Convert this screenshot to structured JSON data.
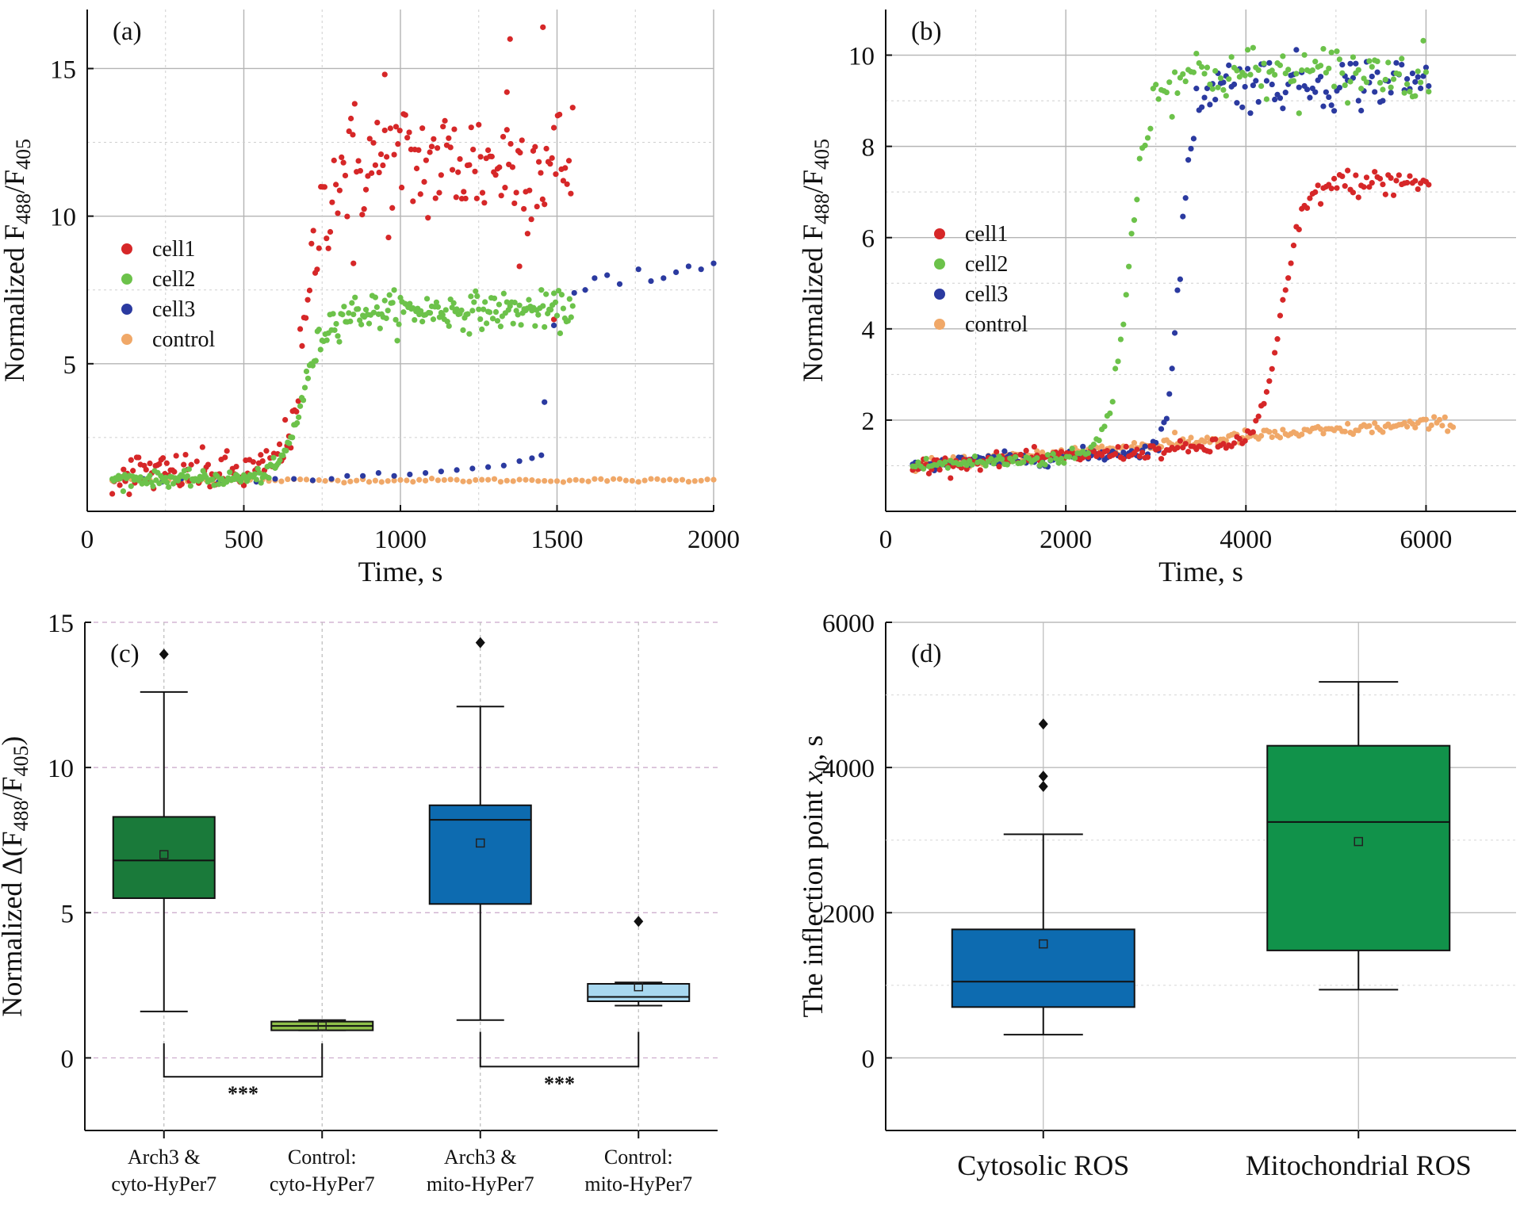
{
  "chart_data": [
    {
      "type": "scatter",
      "panel_label": "(a)",
      "xlabel": "Time, s",
      "ylabel": "Normalized F488/F405",
      "ylabel_main": "Normalized F",
      "ylabel_sub1": "488",
      "ylabel_mid": "/F",
      "ylabel_sub2": "405",
      "xlim": [
        0,
        2000
      ],
      "ylim": [
        0,
        17
      ],
      "xticks": [
        0,
        500,
        1000,
        1500,
        2000
      ],
      "yticks": [
        5,
        10,
        15
      ],
      "xtick_labels": [
        "0",
        "500",
        "1000",
        "1500",
        "2000"
      ],
      "ytick_labels": [
        "5",
        "10",
        "15"
      ],
      "legend": [
        "cell1",
        "cell2",
        "cell3",
        "control"
      ],
      "legend_position": "left",
      "colors": {
        "cell1": "#d62728",
        "cell2": "#6cc24a",
        "cell3": "#2b3aa0",
        "control": "#f0a868"
      },
      "series": [
        {
          "name": "cell1",
          "color": "#d62728",
          "rise_start": 540,
          "midpoint": 700,
          "steepness": 30,
          "baseline": 1.3,
          "plateau": 11.8,
          "t_start": 80,
          "t_end": 1550,
          "step": 6,
          "noise_low": 0.35,
          "noise_high": 1.1,
          "outliers": [
            [
              1350,
              16.0
            ],
            [
              1455,
              16.4
            ],
            [
              950,
              14.8
            ],
            [
              1340,
              14.2
            ],
            [
              1380,
              8.3
            ],
            [
              850,
              8.4
            ],
            [
              1490,
              6.5
            ]
          ]
        },
        {
          "name": "cell2",
          "color": "#6cc24a",
          "midpoint": 690,
          "steepness": 35,
          "baseline": 1.1,
          "plateau": 6.8,
          "t_start": 80,
          "t_end": 1550,
          "step": 5,
          "noise_low": 0.12,
          "noise_high": 0.3
        },
        {
          "name": "cell3",
          "color": "#2b3aa0",
          "points": [
            [
              120,
              1.1
            ],
            [
              180,
              1.1
            ],
            [
              240,
              1.0
            ],
            [
              300,
              1.1
            ],
            [
              360,
              1.1
            ],
            [
              420,
              1.0
            ],
            [
              480,
              1.1
            ],
            [
              540,
              1.0
            ],
            [
              600,
              1.1
            ],
            [
              660,
              1.1
            ],
            [
              720,
              1.05
            ],
            [
              780,
              1.1
            ],
            [
              830,
              1.2
            ],
            [
              880,
              1.2
            ],
            [
              930,
              1.3
            ],
            [
              980,
              1.2
            ],
            [
              1030,
              1.25
            ],
            [
              1080,
              1.3
            ],
            [
              1130,
              1.35
            ],
            [
              1180,
              1.4
            ],
            [
              1230,
              1.45
            ],
            [
              1280,
              1.5
            ],
            [
              1330,
              1.55
            ],
            [
              1380,
              1.7
            ],
            [
              1420,
              1.8
            ],
            [
              1450,
              1.9
            ],
            [
              1460,
              3.7
            ],
            [
              1490,
              6.3
            ],
            [
              1555,
              7.4
            ],
            [
              1590,
              7.5
            ],
            [
              1620,
              7.9
            ],
            [
              1660,
              8.0
            ],
            [
              1700,
              7.7
            ],
            [
              1760,
              8.2
            ],
            [
              1800,
              7.8
            ],
            [
              1840,
              7.9
            ],
            [
              1880,
              8.1
            ],
            [
              1920,
              8.3
            ],
            [
              1960,
              8.2
            ],
            [
              2000,
              8.4
            ]
          ]
        },
        {
          "name": "control",
          "color": "#f0a868",
          "constant": 1.05,
          "t_start": 80,
          "t_end": 2000,
          "step": 20
        }
      ]
    },
    {
      "type": "scatter",
      "panel_label": "(b)",
      "xlabel": "Time, s",
      "ylabel": "Normalized F488/F405",
      "ylabel_main": "Normalized F",
      "ylabel_sub1": "488",
      "ylabel_mid": "/F",
      "ylabel_sub2": "405",
      "xlim": [
        0,
        7000
      ],
      "ylim": [
        0,
        11
      ],
      "xticks": [
        0,
        2000,
        4000,
        6000
      ],
      "yticks": [
        2,
        4,
        6,
        8,
        10
      ],
      "xtick_labels": [
        "0",
        "2000",
        "4000",
        "6000"
      ],
      "ytick_labels": [
        "2",
        "4",
        "6",
        "8",
        "10"
      ],
      "legend": [
        "cell1",
        "cell2",
        "cell3",
        "control"
      ],
      "legend_position": "center-left",
      "colors": {
        "cell1": "#d62728",
        "cell2": "#6cc24a",
        "cell3": "#2b3aa0",
        "control": "#f0a868"
      },
      "series": [
        {
          "name": "cell1",
          "color": "#d62728",
          "midpoint": 4400,
          "steepness": 120,
          "baseline": 1.0,
          "plateau": 7.2,
          "pre_slope": 0.00012,
          "t_start": 300,
          "t_end": 6050,
          "step": 30,
          "noise_low": 0.08,
          "noise_high": 0.15
        },
        {
          "name": "cell2",
          "color": "#6cc24a",
          "midpoint": 2700,
          "steepness": 110,
          "baseline": 1.0,
          "plateau": 9.6,
          "pre_slope": 0.0001,
          "t_start": 300,
          "t_end": 6050,
          "step": 30,
          "noise_low": 0.08,
          "noise_high": 0.3
        },
        {
          "name": "cell3",
          "color": "#2b3aa0",
          "midpoint": 3270,
          "steepness": 70,
          "baseline": 1.0,
          "plateau": 9.4,
          "pre_slope": 0.00012,
          "t_start": 300,
          "t_end": 6050,
          "step": 30,
          "noise_low": 0.08,
          "noise_high": 0.3
        },
        {
          "name": "control",
          "color": "#f0a868",
          "linear_start": 1.0,
          "linear_end": 1.95,
          "t_start": 300,
          "t_end": 6300,
          "step": 30,
          "noise_low": 0.07
        }
      ]
    },
    {
      "type": "box",
      "panel_label": "(c)",
      "ylabel": "Normalized Δ(F488/F405)",
      "ylabel_main": "Normalized Δ(F",
      "ylabel_sub1": "488",
      "ylabel_mid": "/F",
      "ylabel_sub2": "405",
      "ylabel_end": ")",
      "ylim": [
        -2.5,
        15
      ],
      "yticks": [
        0,
        5,
        10,
        15
      ],
      "ytick_labels": [
        "0",
        "5",
        "10",
        "15"
      ],
      "significance": "***",
      "boxes": [
        {
          "line1": "Arch3 &",
          "line2": "cyto-HyPer7",
          "color": "#1a7a3a",
          "whisker_low": 1.6,
          "q1": 5.5,
          "median": 6.8,
          "q3": 8.3,
          "whisker_high": 12.6,
          "mean": 7.0,
          "outliers": [
            13.9
          ]
        },
        {
          "line1": "Control:",
          "line2": "cyto-HyPer7",
          "color": "#8fc04a",
          "whisker_low": 0.95,
          "q1": 0.95,
          "median": 1.1,
          "q3": 1.25,
          "whisker_high": 1.3,
          "mean": 1.1,
          "outliers": []
        },
        {
          "line1": "Arch3 &",
          "line2": "mito-HyPer7",
          "color": "#0d6bb0",
          "whisker_low": 1.3,
          "q1": 5.3,
          "median": 8.2,
          "q3": 8.7,
          "whisker_high": 12.1,
          "mean": 7.4,
          "outliers": [
            14.3
          ]
        },
        {
          "line1": "Control:",
          "line2": "mito-HyPer7",
          "color": "#a8d8f0",
          "whisker_low": 1.8,
          "q1": 1.95,
          "median": 2.1,
          "q3": 2.55,
          "whisker_high": 2.6,
          "mean": 2.45,
          "outliers": [
            4.7
          ]
        }
      ]
    },
    {
      "type": "box",
      "panel_label": "(d)",
      "ylabel": "The inflection point x0, s",
      "ylabel_main": "The inflection point ",
      "ylabel_var": "x",
      "ylabel_sub": "0",
      "ylabel_end": ", s",
      "ylim": [
        -1000,
        6000
      ],
      "yticks": [
        0,
        2000,
        4000,
        6000
      ],
      "ytick_labels": [
        "0",
        "2000",
        "4000",
        "6000"
      ],
      "boxes": [
        {
          "label": "Cytosolic ROS",
          "color": "#0d6bb0",
          "whisker_low": 320,
          "q1": 700,
          "median": 1050,
          "q3": 1770,
          "whisker_high": 3080,
          "mean": 1570,
          "outliers": [
            3740,
            3880,
            4600
          ]
        },
        {
          "label": "Mitochondrial ROS",
          "color": "#11924a",
          "whisker_low": 940,
          "q1": 1480,
          "median": 3250,
          "q3": 4300,
          "whisker_high": 5180,
          "mean": 2980,
          "outliers": []
        }
      ]
    }
  ]
}
